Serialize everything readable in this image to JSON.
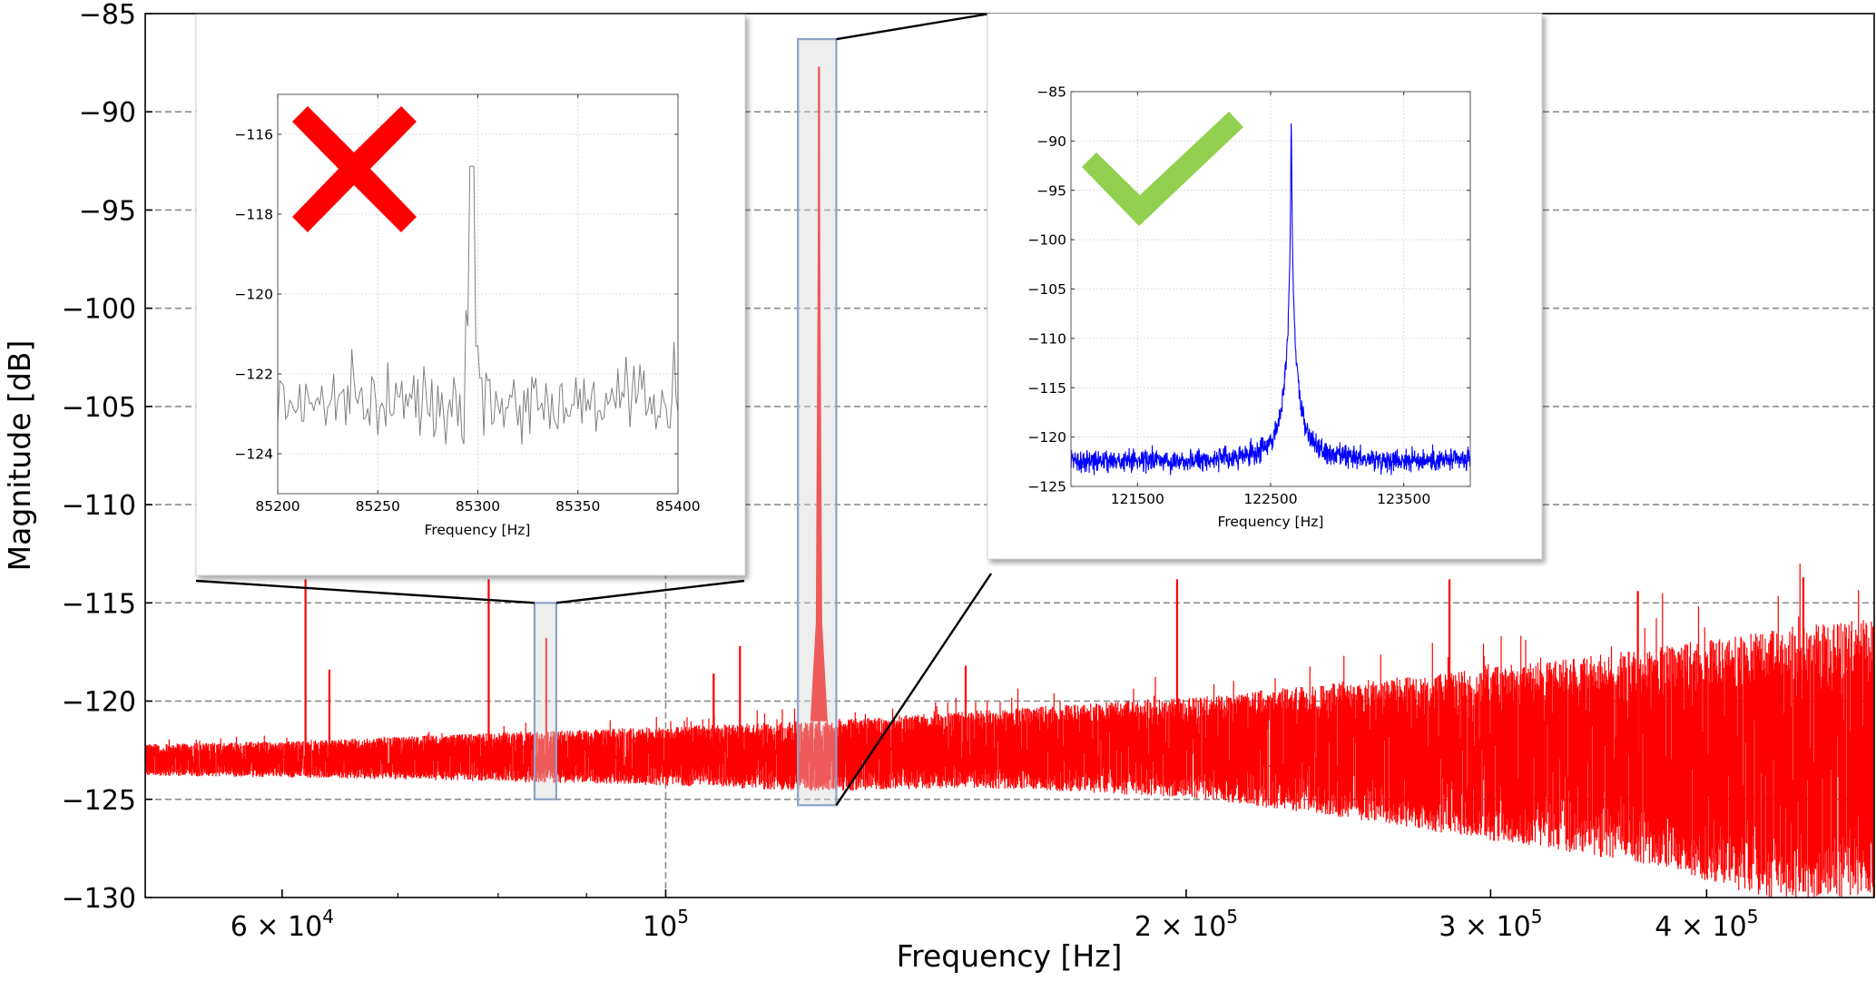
{
  "chart_data": {
    "type": "line",
    "title": "",
    "xlabel": "Frequency [Hz]",
    "ylabel": "Magnitude [dB]",
    "xscale": "log",
    "xlim": [
      50000,
      500000
    ],
    "ylim": [
      -130,
      -85
    ],
    "grid": "dashed, horizontal at every y tick; vertical at 10^5",
    "series_color": "#ff0000",
    "yticks": [
      -85,
      -90,
      -95,
      -100,
      -105,
      -110,
      -115,
      -120,
      -125,
      -130
    ],
    "ytick_labels": [
      "−85",
      "−90",
      "−95",
      "−100",
      "−105",
      "−110",
      "−115",
      "−120",
      "−125",
      "−130"
    ],
    "xticks": [
      {
        "value": 60000,
        "mantissa": "6 × 10",
        "exponent": "4"
      },
      {
        "value": 100000,
        "mantissa": "10",
        "exponent": "5"
      },
      {
        "value": 200000,
        "mantissa": "2 × 10",
        "exponent": "5"
      },
      {
        "value": 300000,
        "mantissa": "3 × 10",
        "exponent": "5"
      },
      {
        "value": 400000,
        "mantissa": "4 × 10",
        "exponent": "5"
      }
    ],
    "minor_xticks": [
      70000,
      80000,
      90000,
      500000
    ],
    "noise_floor": {
      "description": "broadband noise band (min/max envelope) vs frequency",
      "points": [
        {
          "f": 50000,
          "upper": -122.2,
          "lower": -123.8
        },
        {
          "f": 62000,
          "upper": -122.0,
          "lower": -123.9
        },
        {
          "f": 80000,
          "upper": -121.6,
          "lower": -124.1
        },
        {
          "f": 100000,
          "upper": -121.3,
          "lower": -124.3
        },
        {
          "f": 122000,
          "upper": -121.0,
          "lower": -124.6
        },
        {
          "f": 150000,
          "upper": -120.5,
          "lower": -124.4
        },
        {
          "f": 200000,
          "upper": -119.8,
          "lower": -124.9
        },
        {
          "f": 250000,
          "upper": -119.0,
          "lower": -126.0
        },
        {
          "f": 300000,
          "upper": -118.3,
          "lower": -127.1
        },
        {
          "f": 370000,
          "upper": -117.3,
          "lower": -128.3
        },
        {
          "f": 430000,
          "upper": -116.5,
          "lower": -130.0
        },
        {
          "f": 500000,
          "upper": -115.6,
          "lower": -130.0
        }
      ]
    },
    "peaks": [
      {
        "f": 61900,
        "magnitude": -113.8
      },
      {
        "f": 63900,
        "magnitude": -118.4
      },
      {
        "f": 79000,
        "magnitude": -113.8
      },
      {
        "f": 85297,
        "magnitude": -116.8
      },
      {
        "f": 106600,
        "magnitude": -118.6
      },
      {
        "f": 110400,
        "magnitude": -117.2
      },
      {
        "f": 122650,
        "magnitude": -87.7
      },
      {
        "f": 141700,
        "magnitude": -121.3
      },
      {
        "f": 149100,
        "magnitude": -118.2
      },
      {
        "f": 197600,
        "magnitude": -113.8
      },
      {
        "f": 213000,
        "magnitude": -121.0
      },
      {
        "f": 284000,
        "magnitude": -113.8
      },
      {
        "f": 365000,
        "magnitude": -114.4
      },
      {
        "f": 455000,
        "magnitude": -113.7
      }
    ],
    "highlight_regions": [
      {
        "name": "rejected-peak-region",
        "f_range": [
          85200,
          85400
        ],
        "db_range": [
          -125,
          -115
        ]
      },
      {
        "name": "accepted-peak-region",
        "f_range": [
          121000,
          124000
        ],
        "db_range": [
          -125.3,
          -86.3
        ]
      }
    ],
    "insets": [
      {
        "name": "rejected-peak-inset",
        "verdict": "rejected",
        "marker": "cross-mark",
        "marker_color": "#ff0000",
        "line_color": "#808080",
        "xlabel": "Frequency [Hz]",
        "xlim": [
          85200,
          85400
        ],
        "ylim": [
          -125,
          -115
        ],
        "xticks": [
          85200,
          85250,
          85300,
          85350,
          85400
        ],
        "xtick_labels": [
          "85200",
          "85250",
          "85300",
          "85350",
          "85400"
        ],
        "yticks": [
          -116,
          -118,
          -120,
          -122,
          -124
        ],
        "ytick_labels": [
          "−116",
          "−118",
          "−120",
          "−122",
          "−124"
        ],
        "noise_level": -122.7,
        "noise_spread": 0.6,
        "peak": {
          "f": 85297,
          "magnitude": -116.8
        },
        "edge_spike": {
          "f": 85398,
          "magnitude": -121.2
        }
      },
      {
        "name": "accepted-peak-inset",
        "verdict": "accepted",
        "marker": "check-mark",
        "marker_color": "#92d050",
        "line_color": "#0000ff",
        "xlabel": "Frequency [Hz]",
        "xlim": [
          121000,
          124000
        ],
        "ylim": [
          -125,
          -85
        ],
        "xticks": [
          121500,
          122500,
          123500
        ],
        "xtick_labels": [
          "121500",
          "122500",
          "123500"
        ],
        "yticks": [
          -85,
          -90,
          -95,
          -100,
          -105,
          -110,
          -115,
          -120,
          -125
        ],
        "ytick_labels": [
          "−85",
          "−90",
          "−95",
          "−100",
          "−105",
          "−110",
          "−115",
          "−120",
          "−125"
        ],
        "noise_level": -122.4,
        "peak": {
          "f": 122655,
          "magnitude": -87.7
        }
      }
    ]
  }
}
